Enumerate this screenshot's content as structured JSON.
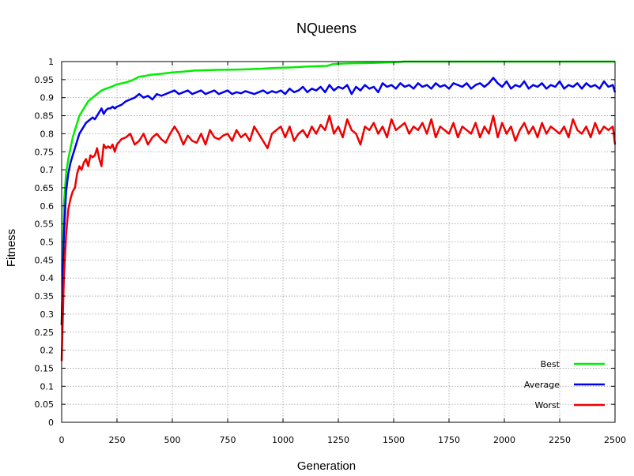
{
  "chart_data": {
    "type": "line",
    "title": "NQueens",
    "xlabel": "Generation",
    "ylabel": "Fitness",
    "xlim": [
      0,
      2500
    ],
    "ylim": [
      0,
      1
    ],
    "xticks": [
      0,
      250,
      500,
      750,
      1000,
      1250,
      1500,
      1750,
      2000,
      2250,
      2500
    ],
    "yticks": [
      0,
      0.05,
      0.1,
      0.15,
      0.2,
      0.25,
      0.3,
      0.35,
      0.4,
      0.45,
      0.5,
      0.55,
      0.6,
      0.65,
      0.7,
      0.75,
      0.8,
      0.85,
      0.9,
      0.95,
      1
    ],
    "xtick_labels": [
      "0",
      "250",
      "500",
      "750",
      "1000",
      "1250",
      "1500",
      "1750",
      "2000",
      "2250",
      "2500"
    ],
    "ytick_labels": [
      "0",
      "0.05",
      "0.1",
      "0.15",
      "0.2",
      "0.25",
      "0.3",
      "0.35",
      "0.4",
      "0.45",
      "0.5",
      "0.55",
      "0.6",
      "0.65",
      "0.7",
      "0.75",
      "0.8",
      "0.85",
      "0.9",
      "0.95",
      "1"
    ],
    "grid": true,
    "legend_position": "bottom-right",
    "series": [
      {
        "name": "Best",
        "color": "#00ee00",
        "x": [
          0,
          10,
          20,
          30,
          40,
          50,
          60,
          70,
          80,
          90,
          100,
          120,
          140,
          160,
          180,
          200,
          225,
          250,
          275,
          300,
          325,
          350,
          375,
          400,
          450,
          500,
          550,
          600,
          700,
          800,
          900,
          950,
          1000,
          1050,
          1100,
          1150,
          1200,
          1225,
          1250,
          1300,
          1400,
          1450,
          1500,
          1525,
          1550,
          1600,
          1700,
          1800,
          1900,
          2000,
          2100,
          2200,
          2300,
          2400,
          2500
        ],
        "values": [
          0.27,
          0.6,
          0.69,
          0.73,
          0.76,
          0.79,
          0.81,
          0.83,
          0.85,
          0.86,
          0.87,
          0.89,
          0.9,
          0.91,
          0.92,
          0.925,
          0.93,
          0.937,
          0.94,
          0.944,
          0.95,
          0.958,
          0.96,
          0.963,
          0.966,
          0.97,
          0.972,
          0.975,
          0.977,
          0.978,
          0.98,
          0.982,
          0.983,
          0.984,
          0.986,
          0.987,
          0.988,
          0.993,
          0.994,
          0.995,
          0.996,
          0.997,
          0.998,
          0.999,
          1,
          1,
          1,
          1,
          1,
          1,
          1,
          1,
          1,
          1,
          1
        ]
      },
      {
        "name": "Average",
        "color": "#0000ee",
        "x": [
          0,
          10,
          20,
          30,
          40,
          50,
          60,
          70,
          80,
          90,
          100,
          110,
          120,
          130,
          140,
          150,
          160,
          170,
          180,
          190,
          200,
          210,
          220,
          230,
          240,
          250,
          270,
          290,
          310,
          330,
          350,
          370,
          390,
          410,
          430,
          450,
          470,
          490,
          510,
          530,
          550,
          570,
          590,
          610,
          630,
          650,
          670,
          690,
          710,
          730,
          750,
          770,
          790,
          810,
          830,
          850,
          870,
          890,
          910,
          930,
          950,
          970,
          990,
          1010,
          1030,
          1050,
          1070,
          1090,
          1110,
          1130,
          1150,
          1170,
          1190,
          1210,
          1230,
          1250,
          1270,
          1290,
          1310,
          1330,
          1350,
          1370,
          1390,
          1410,
          1430,
          1450,
          1470,
          1490,
          1510,
          1530,
          1550,
          1570,
          1590,
          1610,
          1630,
          1650,
          1670,
          1690,
          1710,
          1730,
          1750,
          1770,
          1790,
          1810,
          1830,
          1850,
          1870,
          1890,
          1910,
          1930,
          1950,
          1970,
          1990,
          2010,
          2030,
          2050,
          2070,
          2090,
          2110,
          2130,
          2150,
          2170,
          2190,
          2210,
          2230,
          2250,
          2270,
          2290,
          2310,
          2330,
          2350,
          2370,
          2390,
          2410,
          2430,
          2450,
          2470,
          2490,
          2500
        ],
        "values": [
          0.27,
          0.52,
          0.64,
          0.69,
          0.72,
          0.74,
          0.76,
          0.78,
          0.8,
          0.81,
          0.82,
          0.83,
          0.835,
          0.84,
          0.845,
          0.84,
          0.85,
          0.86,
          0.87,
          0.855,
          0.865,
          0.87,
          0.87,
          0.875,
          0.87,
          0.875,
          0.88,
          0.89,
          0.895,
          0.9,
          0.91,
          0.9,
          0.905,
          0.895,
          0.91,
          0.905,
          0.91,
          0.915,
          0.92,
          0.91,
          0.915,
          0.92,
          0.91,
          0.915,
          0.92,
          0.91,
          0.915,
          0.92,
          0.91,
          0.915,
          0.92,
          0.91,
          0.915,
          0.912,
          0.918,
          0.914,
          0.91,
          0.915,
          0.92,
          0.912,
          0.918,
          0.914,
          0.92,
          0.91,
          0.925,
          0.915,
          0.92,
          0.93,
          0.915,
          0.925,
          0.92,
          0.93,
          0.915,
          0.935,
          0.92,
          0.93,
          0.925,
          0.935,
          0.91,
          0.93,
          0.92,
          0.935,
          0.925,
          0.93,
          0.915,
          0.94,
          0.93,
          0.935,
          0.925,
          0.94,
          0.93,
          0.935,
          0.925,
          0.94,
          0.93,
          0.935,
          0.925,
          0.94,
          0.93,
          0.935,
          0.925,
          0.94,
          0.935,
          0.93,
          0.94,
          0.925,
          0.935,
          0.94,
          0.93,
          0.94,
          0.955,
          0.94,
          0.93,
          0.945,
          0.925,
          0.935,
          0.93,
          0.945,
          0.925,
          0.935,
          0.93,
          0.94,
          0.925,
          0.935,
          0.93,
          0.945,
          0.925,
          0.935,
          0.93,
          0.94,
          0.925,
          0.94,
          0.93,
          0.935,
          0.925,
          0.945,
          0.93,
          0.935,
          0.915
        ]
      },
      {
        "name": "Worst",
        "color": "#ee0000",
        "x": [
          0,
          10,
          20,
          30,
          40,
          50,
          60,
          70,
          80,
          90,
          100,
          110,
          120,
          130,
          140,
          150,
          160,
          170,
          180,
          190,
          200,
          210,
          220,
          230,
          240,
          250,
          270,
          290,
          310,
          330,
          350,
          370,
          390,
          410,
          430,
          450,
          470,
          490,
          510,
          530,
          550,
          570,
          590,
          610,
          630,
          650,
          670,
          690,
          710,
          730,
          750,
          770,
          790,
          810,
          830,
          850,
          870,
          890,
          910,
          930,
          950,
          970,
          990,
          1010,
          1030,
          1050,
          1070,
          1090,
          1110,
          1130,
          1150,
          1170,
          1190,
          1210,
          1230,
          1250,
          1270,
          1290,
          1310,
          1330,
          1350,
          1370,
          1390,
          1410,
          1430,
          1450,
          1470,
          1490,
          1510,
          1530,
          1550,
          1570,
          1590,
          1610,
          1630,
          1650,
          1670,
          1690,
          1710,
          1730,
          1750,
          1770,
          1790,
          1810,
          1830,
          1850,
          1870,
          1890,
          1910,
          1930,
          1950,
          1970,
          1990,
          2010,
          2030,
          2050,
          2070,
          2090,
          2110,
          2130,
          2150,
          2170,
          2190,
          2210,
          2230,
          2250,
          2270,
          2290,
          2310,
          2330,
          2350,
          2370,
          2390,
          2410,
          2430,
          2450,
          2470,
          2490,
          2500
        ],
        "values": [
          0.17,
          0.4,
          0.52,
          0.59,
          0.62,
          0.64,
          0.65,
          0.69,
          0.71,
          0.7,
          0.72,
          0.73,
          0.71,
          0.74,
          0.735,
          0.74,
          0.76,
          0.73,
          0.71,
          0.77,
          0.76,
          0.765,
          0.76,
          0.77,
          0.75,
          0.77,
          0.785,
          0.79,
          0.8,
          0.77,
          0.78,
          0.8,
          0.77,
          0.79,
          0.8,
          0.785,
          0.775,
          0.8,
          0.82,
          0.8,
          0.77,
          0.795,
          0.78,
          0.775,
          0.8,
          0.77,
          0.81,
          0.79,
          0.785,
          0.795,
          0.8,
          0.78,
          0.81,
          0.79,
          0.8,
          0.78,
          0.82,
          0.8,
          0.78,
          0.76,
          0.8,
          0.81,
          0.82,
          0.79,
          0.82,
          0.78,
          0.8,
          0.81,
          0.79,
          0.82,
          0.8,
          0.825,
          0.81,
          0.85,
          0.8,
          0.82,
          0.79,
          0.84,
          0.81,
          0.8,
          0.77,
          0.82,
          0.81,
          0.83,
          0.8,
          0.82,
          0.79,
          0.84,
          0.81,
          0.82,
          0.83,
          0.8,
          0.82,
          0.81,
          0.83,
          0.8,
          0.84,
          0.79,
          0.82,
          0.81,
          0.8,
          0.83,
          0.79,
          0.82,
          0.81,
          0.8,
          0.83,
          0.79,
          0.82,
          0.8,
          0.85,
          0.79,
          0.83,
          0.8,
          0.82,
          0.78,
          0.81,
          0.83,
          0.8,
          0.82,
          0.79,
          0.83,
          0.8,
          0.82,
          0.81,
          0.8,
          0.82,
          0.79,
          0.84,
          0.81,
          0.8,
          0.82,
          0.79,
          0.83,
          0.8,
          0.82,
          0.81,
          0.82,
          0.77
        ]
      }
    ]
  }
}
